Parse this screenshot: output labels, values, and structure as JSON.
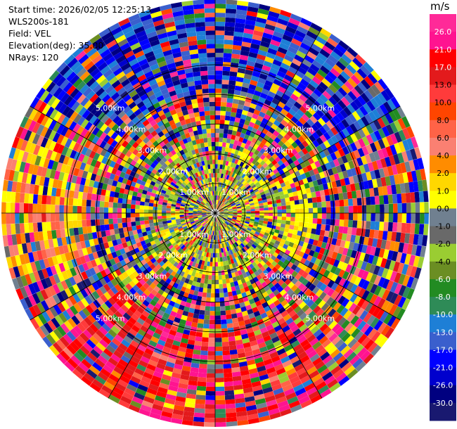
{
  "header": {
    "start_time": "Start time: 2026/02/05 12:25:13",
    "instrument": "WLS200s-181",
    "field": "Field: VEL",
    "elevation": "Elevation(deg): 35.00",
    "nrays": "NRays: 120"
  },
  "chart_data": {
    "type": "heatmap",
    "projection": "polar-ppi",
    "field": "VEL",
    "nrays": 120,
    "elevation_deg": 35.0,
    "range_rings_km": [
      1.0,
      2.0,
      3.0,
      4.0,
      5.0
    ],
    "range_ring_labels": [
      "1.00km",
      "2.00km",
      "3.00km",
      "4.00km",
      "5.00km"
    ],
    "max_range_km": 7.2,
    "colorbar": {
      "unit": "m/s",
      "tick_labels": [
        "26.0",
        "21.0",
        "17.0",
        "13.0",
        "10.0",
        "8.0",
        "6.0",
        "4.0",
        "2.0",
        "1.0",
        "0.0",
        "-1.0",
        "-2.0",
        "-4.0",
        "-6.0",
        "-8.0",
        "-10.0",
        "-13.0",
        "-17.0",
        "-21.0",
        "-26.0",
        "-30.0"
      ],
      "colors": [
        "#ff2a98",
        "#ff1490",
        "#ff0000",
        "#e31a1c",
        "#ff3b3b",
        "#ff4500",
        "#ff6347",
        "#fa8072",
        "#ff8c00",
        "#ffd700",
        "#ffff00",
        "#708090",
        "#696969",
        "#9acd32",
        "#6b8e23",
        "#228b22",
        "#2e8b57",
        "#1e7fd6",
        "#3a5fcd",
        "#0000ff",
        "#0000cd",
        "#000080",
        "#191970"
      ]
    }
  }
}
